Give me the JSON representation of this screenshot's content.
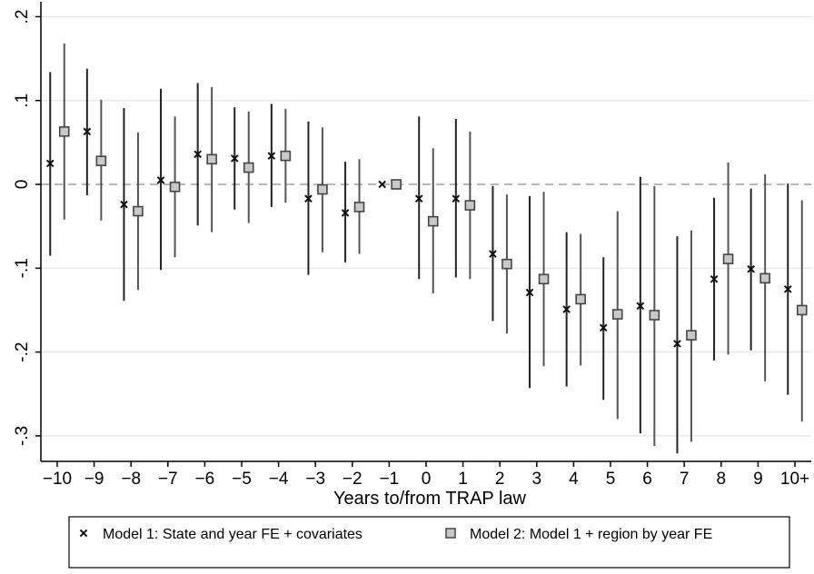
{
  "chart_data": {
    "type": "scatter",
    "xlabel": "Years to/from TRAP law",
    "ylabel": "",
    "categories": [
      "−10",
      "−9",
      "−8",
      "−7",
      "−6",
      "−5",
      "−4",
      "−3",
      "−2",
      "−1",
      "0",
      "1",
      "2",
      "3",
      "4",
      "5",
      "6",
      "7",
      "8",
      "9",
      "10+"
    ],
    "yticks": [
      {
        "value": 0.2,
        "label": ".2"
      },
      {
        "value": 0.1,
        "label": ".1"
      },
      {
        "value": 0,
        "label": "0"
      },
      {
        "value": -0.1,
        "label": "-.1"
      },
      {
        "value": -0.2,
        "label": "-.2"
      },
      {
        "value": -0.3,
        "label": "-.3"
      }
    ],
    "ylim": [
      -0.335,
      0.205
    ],
    "reference_line": 0,
    "grid": "horizontal",
    "legend_position": "bottom",
    "series": [
      {
        "name": "Model 1: State and year FE + covariates",
        "marker": "x",
        "marker_symbol": "×",
        "color": "#222222",
        "values": [
          0.025,
          0.063,
          -0.024,
          0.005,
          0.036,
          0.031,
          0.034,
          -0.017,
          -0.034,
          0.0,
          -0.017,
          -0.017,
          -0.083,
          -0.129,
          -0.149,
          -0.171,
          -0.145,
          -0.19,
          -0.113,
          -0.101,
          -0.125
        ],
        "lower": [
          -0.085,
          -0.013,
          -0.139,
          -0.102,
          -0.049,
          -0.03,
          -0.027,
          -0.108,
          -0.093,
          0.0,
          -0.113,
          -0.111,
          -0.163,
          -0.243,
          -0.241,
          -0.257,
          -0.297,
          -0.321,
          -0.21,
          -0.198,
          -0.251
        ],
        "upper": [
          0.134,
          0.138,
          0.091,
          0.114,
          0.121,
          0.092,
          0.096,
          0.075,
          0.027,
          0.0,
          0.081,
          0.078,
          -0.002,
          -0.014,
          -0.057,
          -0.087,
          0.009,
          -0.062,
          -0.016,
          -0.005,
          0.001
        ]
      },
      {
        "name": "Model 2: Model 1 + region by year FE",
        "marker": "square",
        "marker_symbol": "□",
        "color": "#555555",
        "values": [
          0.063,
          0.028,
          -0.032,
          -0.003,
          0.03,
          0.02,
          0.034,
          -0.006,
          -0.027,
          0.0,
          -0.044,
          -0.025,
          -0.095,
          -0.113,
          -0.137,
          -0.155,
          -0.156,
          -0.18,
          -0.089,
          -0.112,
          -0.15
        ],
        "lower": [
          -0.042,
          -0.043,
          -0.126,
          -0.087,
          -0.057,
          -0.046,
          -0.022,
          -0.081,
          -0.083,
          0.0,
          -0.13,
          -0.113,
          -0.178,
          -0.217,
          -0.216,
          -0.28,
          -0.312,
          -0.307,
          -0.203,
          -0.235,
          -0.283
        ],
        "upper": [
          0.168,
          0.101,
          0.062,
          0.081,
          0.116,
          0.087,
          0.09,
          0.068,
          0.03,
          0.0,
          0.043,
          0.063,
          -0.012,
          -0.009,
          -0.059,
          -0.032,
          -0.002,
          -0.055,
          0.026,
          0.012,
          -0.019
        ]
      }
    ]
  }
}
